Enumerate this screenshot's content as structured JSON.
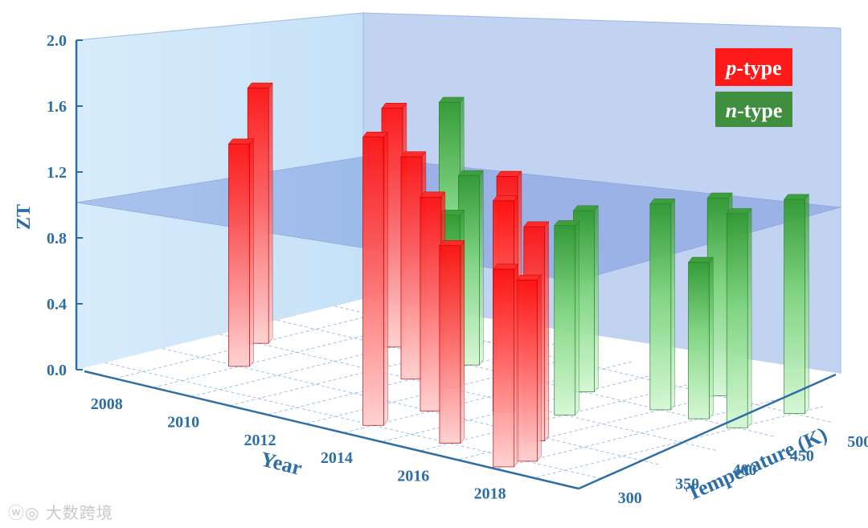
{
  "chart_data": {
    "type": "bar",
    "projection": "3d",
    "xlabel": "Year",
    "ylabel": "Temperature (K)",
    "zlabel": "ZT",
    "x_ticks": [
      "2008",
      "2010",
      "2012",
      "2014",
      "2016",
      "2018"
    ],
    "y_ticks": [
      "300",
      "350",
      "400",
      "450",
      "500"
    ],
    "z_ticks": [
      "0.0",
      "0.4",
      "0.8",
      "1.2",
      "1.6",
      "2.0"
    ],
    "zlim": [
      0,
      2.0
    ],
    "reference_plane_z": 1.0,
    "grid": true,
    "legend_position": "top-right",
    "series": [
      {
        "name": "p-type",
        "color": "#ff1a1a",
        "points": [
          {
            "x": 2008,
            "y": 400,
            "z": 1.55
          },
          {
            "x": 2009,
            "y": 350,
            "z": 1.35
          },
          {
            "x": 2010,
            "y": 450,
            "z": 1.45
          },
          {
            "x": 2012,
            "y": 400,
            "z": 1.35
          },
          {
            "x": 2013,
            "y": 450,
            "z": 1.2
          },
          {
            "x": 2014,
            "y": 350,
            "z": 1.3
          },
          {
            "x": 2014,
            "y": 300,
            "z": 1.75
          },
          {
            "x": 2015,
            "y": 380,
            "z": 1.28
          },
          {
            "x": 2016,
            "y": 300,
            "z": 1.2
          },
          {
            "x": 2017,
            "y": 340,
            "z": 1.3
          },
          {
            "x": 2018,
            "y": 300,
            "z": 1.1
          },
          {
            "x": 2018,
            "y": 280,
            "z": 1.2
          }
        ]
      },
      {
        "name": "n-type",
        "color": "#3fae3f",
        "points": [
          {
            "x": 2010,
            "y": 500,
            "z": 1.4
          },
          {
            "x": 2012,
            "y": 450,
            "z": 1.15
          },
          {
            "x": 2013,
            "y": 400,
            "z": 1.05
          },
          {
            "x": 2015,
            "y": 450,
            "z": 1.1
          },
          {
            "x": 2016,
            "y": 400,
            "z": 1.15
          },
          {
            "x": 2017,
            "y": 500,
            "z": 1.2
          },
          {
            "x": 2017,
            "y": 450,
            "z": 1.25
          },
          {
            "x": 2018,
            "y": 450,
            "z": 0.95
          },
          {
            "x": 2019,
            "y": 500,
            "z": 1.3
          },
          {
            "x": 2019,
            "y": 450,
            "z": 1.3
          }
        ]
      }
    ]
  },
  "watermark": "大数跨境"
}
